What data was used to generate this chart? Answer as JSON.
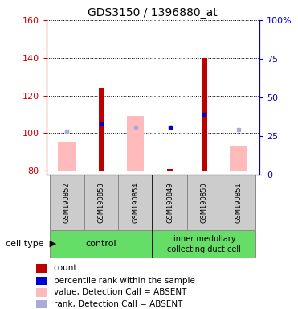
{
  "title": "GDS3150 / 1396880_at",
  "samples": [
    "GSM190852",
    "GSM190853",
    "GSM190854",
    "GSM190849",
    "GSM190850",
    "GSM190851"
  ],
  "ylim_left": [
    78,
    160
  ],
  "ylim_right": [
    0,
    100
  ],
  "yticks_left": [
    80,
    100,
    120,
    140,
    160
  ],
  "yticks_right": [
    0,
    25,
    50,
    75,
    100
  ],
  "yticklabels_right": [
    "0",
    "25",
    "50",
    "75",
    "100%"
  ],
  "baseline": 80,
  "red_bars_present": [
    false,
    true,
    false,
    true,
    true,
    false
  ],
  "red_bars_tops": [
    80,
    124,
    80,
    81,
    140,
    80
  ],
  "pink_bars_present": [
    true,
    false,
    true,
    false,
    false,
    true
  ],
  "pink_bars_tops": [
    95,
    80,
    109,
    80,
    80,
    93
  ],
  "blue_sq_present": [
    false,
    true,
    false,
    true,
    true,
    false
  ],
  "blue_sq_values": [
    0,
    105,
    0,
    103,
    110,
    0
  ],
  "lblue_sq_present": [
    true,
    false,
    true,
    false,
    false,
    true
  ],
  "lblue_sq_values": [
    101,
    0,
    103,
    0,
    0,
    102
  ],
  "red_bar_color": "#bb0000",
  "pink_bar_color": "#ffbbbb",
  "blue_sq_color": "#0000cc",
  "lblue_sq_color": "#aaaadd",
  "group1_label": "control",
  "group2_label": "inner medullary\ncollecting duct cell",
  "group_color": "#66dd66",
  "sample_box_color": "#cccccc",
  "left_axis_color": "#cc0000",
  "right_axis_color": "#0000cc"
}
